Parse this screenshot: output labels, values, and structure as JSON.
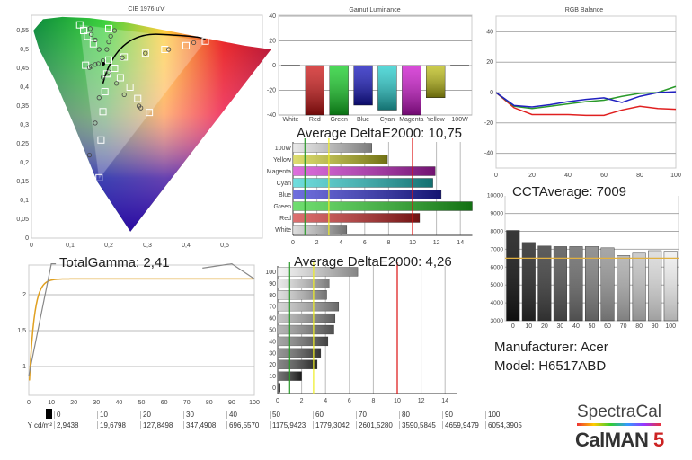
{
  "chart_data": [
    {
      "id": "cie",
      "type": "scatter",
      "title": "CIE 1976 u'v'",
      "xlim": [
        0,
        0.6
      ],
      "ylim": [
        0,
        0.59
      ],
      "xticks": [
        "0",
        "0,1",
        "0,2",
        "0,3",
        "0,4",
        "0,5"
      ],
      "yticks": [
        "0",
        "0,05",
        "0,1",
        "0,15",
        "0,2",
        "0,25",
        "0,3",
        "0,35",
        "0,4",
        "0,45",
        "0,5",
        "0,55"
      ],
      "targets": [
        [
          0.125,
          0.565
        ],
        [
          0.135,
          0.55
        ],
        [
          0.145,
          0.535
        ],
        [
          0.16,
          0.515
        ],
        [
          0.2,
          0.555
        ],
        [
          0.2,
          0.472
        ],
        [
          0.14,
          0.458
        ],
        [
          0.24,
          0.48
        ],
        [
          0.295,
          0.49
        ],
        [
          0.345,
          0.5
        ],
        [
          0.4,
          0.51
        ],
        [
          0.45,
          0.522
        ],
        [
          0.215,
          0.45
        ],
        [
          0.195,
          0.435
        ],
        [
          0.23,
          0.425
        ],
        [
          0.255,
          0.4
        ],
        [
          0.19,
          0.388
        ],
        [
          0.275,
          0.37
        ],
        [
          0.305,
          0.333
        ],
        [
          0.185,
          0.335
        ],
        [
          0.18,
          0.26
        ],
        [
          0.175,
          0.16
        ]
      ],
      "measured": [
        [
          0.152,
          0.555
        ],
        [
          0.155,
          0.54
        ],
        [
          0.165,
          0.525
        ],
        [
          0.175,
          0.5
        ],
        [
          0.2,
          0.52
        ],
        [
          0.205,
          0.535
        ],
        [
          0.215,
          0.55
        ],
        [
          0.195,
          0.5
        ],
        [
          0.15,
          0.452
        ],
        [
          0.155,
          0.455
        ],
        [
          0.165,
          0.46
        ],
        [
          0.173,
          0.462
        ],
        [
          0.185,
          0.47
        ],
        [
          0.235,
          0.478
        ],
        [
          0.295,
          0.49
        ],
        [
          0.355,
          0.5
        ],
        [
          0.42,
          0.518
        ],
        [
          0.2,
          0.44
        ],
        [
          0.185,
          0.426
        ],
        [
          0.22,
          0.41
        ],
        [
          0.175,
          0.372
        ],
        [
          0.24,
          0.38
        ],
        [
          0.278,
          0.35
        ],
        [
          0.283,
          0.345
        ],
        [
          0.165,
          0.305
        ],
        [
          0.15,
          0.22
        ]
      ],
      "whitepoint": [
        0.186,
        0.462
      ]
    },
    {
      "id": "gamut",
      "type": "bar",
      "title": "Gamut Luminance",
      "categories": [
        "White",
        "Red",
        "Green",
        "Blue",
        "Cyan",
        "Magenta",
        "Yellow",
        "100W"
      ],
      "values": [
        0,
        -40,
        -40,
        -32,
        -36,
        -40,
        -26,
        0
      ],
      "colors": [
        "#888888",
        "#cc1111",
        "#11cc22",
        "#1111bb",
        "#22cccc",
        "#cc11cc",
        "#bbbb11",
        "#888888"
      ],
      "ylim": [
        -40,
        40
      ],
      "yticks": [
        "-40",
        "-20",
        "0",
        "20",
        "40"
      ]
    },
    {
      "id": "de_color",
      "type": "bar",
      "orientation": "horizontal",
      "title": "Average DeltaE2000: 10,75",
      "categories": [
        "100W",
        "Yellow",
        "Magenta",
        "Cyan",
        "Blue",
        "Green",
        "Red",
        "White"
      ],
      "values": [
        6.6,
        7.9,
        11.9,
        11.7,
        12.4,
        15,
        10.6,
        4.5
      ],
      "colors": [
        "#dddddd",
        "#cccc22",
        "#cc22cc",
        "#22cccc",
        "#2222cc",
        "#22cc22",
        "#cc2222",
        "#cccccc"
      ],
      "xlim": [
        0,
        15
      ],
      "xticks": [
        "0",
        "2",
        "4",
        "6",
        "8",
        "10",
        "12",
        "14"
      ],
      "thresholds": [
        1,
        3,
        10
      ]
    },
    {
      "id": "gamma",
      "type": "line",
      "title": "TotalGamma: 2,41",
      "xlim": [
        0,
        100
      ],
      "ylim": [
        0.8,
        2.4
      ],
      "xticks": [
        "0",
        "10",
        "20",
        "30",
        "40",
        "50",
        "60",
        "70",
        "80",
        "90",
        "100"
      ],
      "yticks": [
        "1",
        "1,5",
        "2"
      ],
      "target_gamma": 2.22
    },
    {
      "id": "de_gray",
      "type": "bar",
      "orientation": "horizontal",
      "title": "Average DeltaE2000: 4,26",
      "categories": [
        "100",
        "90",
        "80",
        "70",
        "60",
        "50",
        "40",
        "30",
        "20",
        "10",
        "0"
      ],
      "values": [
        6.7,
        4.3,
        4.1,
        5.1,
        4.8,
        4.7,
        4.2,
        3.6,
        3.3,
        2.0,
        0.2
      ],
      "xlim": [
        0,
        15
      ],
      "xticks": [
        "0",
        "2",
        "4",
        "6",
        "8",
        "10",
        "12",
        "14"
      ],
      "thresholds": [
        1,
        3,
        10
      ]
    },
    {
      "id": "rgb",
      "type": "line",
      "title": "RGB Balance",
      "xlim": [
        0,
        100
      ],
      "ylim": [
        -50,
        50
      ],
      "xticks": [
        "0",
        "20",
        "40",
        "60",
        "80",
        "100"
      ],
      "yticks": [
        "-40",
        "-20",
        "0",
        "20",
        "40"
      ],
      "x": [
        0,
        10,
        20,
        30,
        40,
        50,
        60,
        70,
        80,
        90,
        100
      ],
      "series": [
        {
          "name": "Red",
          "color": "#e02020",
          "values": [
            0,
            -10,
            -14.5,
            -14.5,
            -14.5,
            -15,
            -15,
            -11.5,
            -9,
            -10.5,
            -11
          ]
        },
        {
          "name": "Green",
          "color": "#2a9a2a",
          "values": [
            0,
            -9,
            -10.5,
            -9,
            -7.5,
            -6,
            -5,
            -2.5,
            -0.5,
            0,
            4
          ]
        },
        {
          "name": "Blue",
          "color": "#2020c0",
          "values": [
            0,
            -8.5,
            -9.5,
            -8,
            -6,
            -4.5,
            -3.5,
            -6.5,
            -2.5,
            0,
            0.5
          ]
        }
      ]
    },
    {
      "id": "cct",
      "type": "bar",
      "title": "CCTAverage: 7009",
      "categories": [
        "0",
        "10",
        "20",
        "30",
        "40",
        "50",
        "60",
        "70",
        "80",
        "90",
        "100"
      ],
      "values": [
        8050,
        7380,
        7180,
        7150,
        7150,
        7150,
        7080,
        6650,
        6780,
        6920,
        6890
      ],
      "target": 6500,
      "ylim": [
        3000,
        10000
      ],
      "yticks": [
        "3000",
        "4000",
        "5000",
        "6000",
        "7000",
        "8000",
        "9000",
        "10000"
      ]
    }
  ],
  "info": {
    "manufacturer": "Manufacturer: Acer",
    "model": "Model: H6517ABD"
  },
  "table": {
    "header_label": "",
    "row_label": "Y cd/m²",
    "levels": [
      "0",
      "10",
      "20",
      "30",
      "40",
      "50",
      "60",
      "70",
      "80",
      "90",
      "100"
    ],
    "values": [
      "2,9438",
      "19,6798",
      "127,8498",
      "347,4908",
      "696,5570",
      "1175,9423",
      "1779,3042",
      "2601,5280",
      "3590,5845",
      "4659,9479",
      "6054,3905"
    ]
  },
  "logo": {
    "brand": "SpectraCal",
    "product": "CalMAN",
    "version": "5"
  }
}
